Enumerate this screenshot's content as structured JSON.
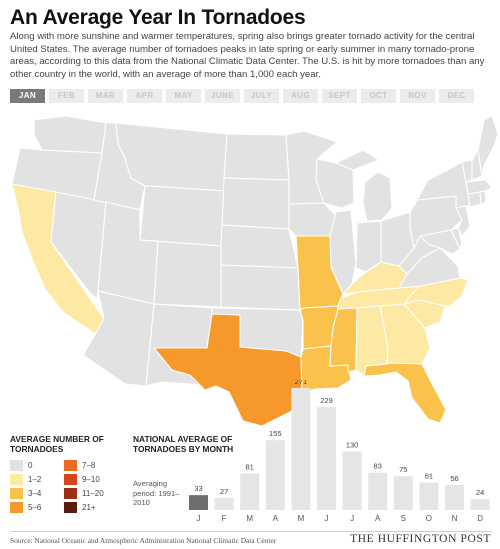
{
  "header": {
    "title": "An Average Year In Tornadoes",
    "intro": "Along with more sunshine and warmer temperatures, spring also brings greater tornado activity for the central United States. The average number of tornadoes peaks in late spring or early summer in many tornado-prone areas, according to this data from the National Climatic Data Center. The U.S. is hit by more tornadoes than any other country in the world, with an average of more than 1,000 each year."
  },
  "month_tabs": [
    {
      "label": "JAN",
      "active": true
    },
    {
      "label": "FEB",
      "active": false
    },
    {
      "label": "MAR",
      "active": false
    },
    {
      "label": "APR",
      "active": false
    },
    {
      "label": "MAY",
      "active": false
    },
    {
      "label": "JUNE",
      "active": false
    },
    {
      "label": "JULY",
      "active": false
    },
    {
      "label": "AUG",
      "active": false
    },
    {
      "label": "SEPT",
      "active": false
    },
    {
      "label": "OCT",
      "active": false
    },
    {
      "label": "NOV",
      "active": false
    },
    {
      "label": "DEC",
      "active": false
    }
  ],
  "map": {
    "selected_month": "JAN",
    "default_color": "#e2e2e2",
    "border_color": "#ffffff",
    "highlighted_states": [
      {
        "state": "California",
        "bin": "1–2",
        "color": "#fde9a3"
      },
      {
        "state": "Texas",
        "bin": "5–6",
        "color": "#f7982a"
      },
      {
        "state": "Missouri",
        "bin": "3–4",
        "color": "#fbc24b"
      },
      {
        "state": "Arkansas",
        "bin": "3–4",
        "color": "#fbc24b"
      },
      {
        "state": "Louisiana",
        "bin": "3–4",
        "color": "#fbc24b"
      },
      {
        "state": "Mississippi",
        "bin": "3–4",
        "color": "#fbc24b"
      },
      {
        "state": "Kentucky",
        "bin": "1–2",
        "color": "#fde9a3"
      },
      {
        "state": "Tennessee",
        "bin": "1–2",
        "color": "#fde9a3"
      },
      {
        "state": "Alabama",
        "bin": "1–2",
        "color": "#fde9a3"
      },
      {
        "state": "Georgia",
        "bin": "1–2",
        "color": "#fde9a3"
      },
      {
        "state": "South Carolina",
        "bin": "1–2",
        "color": "#fde9a3"
      },
      {
        "state": "North Carolina",
        "bin": "1–2",
        "color": "#fde9a3"
      },
      {
        "state": "Florida",
        "bin": "3–4",
        "color": "#fbc24b"
      }
    ]
  },
  "legend": {
    "title": "AVERAGE NUMBER OF TORNADOES",
    "items": [
      {
        "label": "0",
        "color": "#e2e2e2"
      },
      {
        "label": "7–8",
        "color": "#ed6a23"
      },
      {
        "label": "1–2",
        "color": "#fde9a3"
      },
      {
        "label": "9–10",
        "color": "#d4471b"
      },
      {
        "label": "3–4",
        "color": "#fbc24b"
      },
      {
        "label": "11–20",
        "color": "#9c2e16"
      },
      {
        "label": "5–6",
        "color": "#f7982a"
      },
      {
        "label": "21+",
        "color": "#5a1a0c"
      }
    ]
  },
  "chart_data": {
    "type": "bar",
    "title": "NATIONAL AVERAGE OF TORNADOES BY MONTH",
    "note": "Averaging period: 1991–2010",
    "categories": [
      "J",
      "F",
      "M",
      "A",
      "M",
      "J",
      "J",
      "A",
      "S",
      "O",
      "N",
      "D"
    ],
    "values": [
      33,
      27,
      81,
      155,
      271,
      229,
      130,
      83,
      75,
      61,
      56,
      24
    ],
    "highlight_index": 0,
    "colors": {
      "bar": "#e5e5e5",
      "highlight": "#6e6e70"
    },
    "ylim": [
      0,
      271
    ],
    "xlabel": "",
    "ylabel": ""
  },
  "footer": {
    "source": "Source: National Oceanic and Atmospheric Administration National Climatic Data Center",
    "brand": "THE HUFFINGTON POST"
  }
}
